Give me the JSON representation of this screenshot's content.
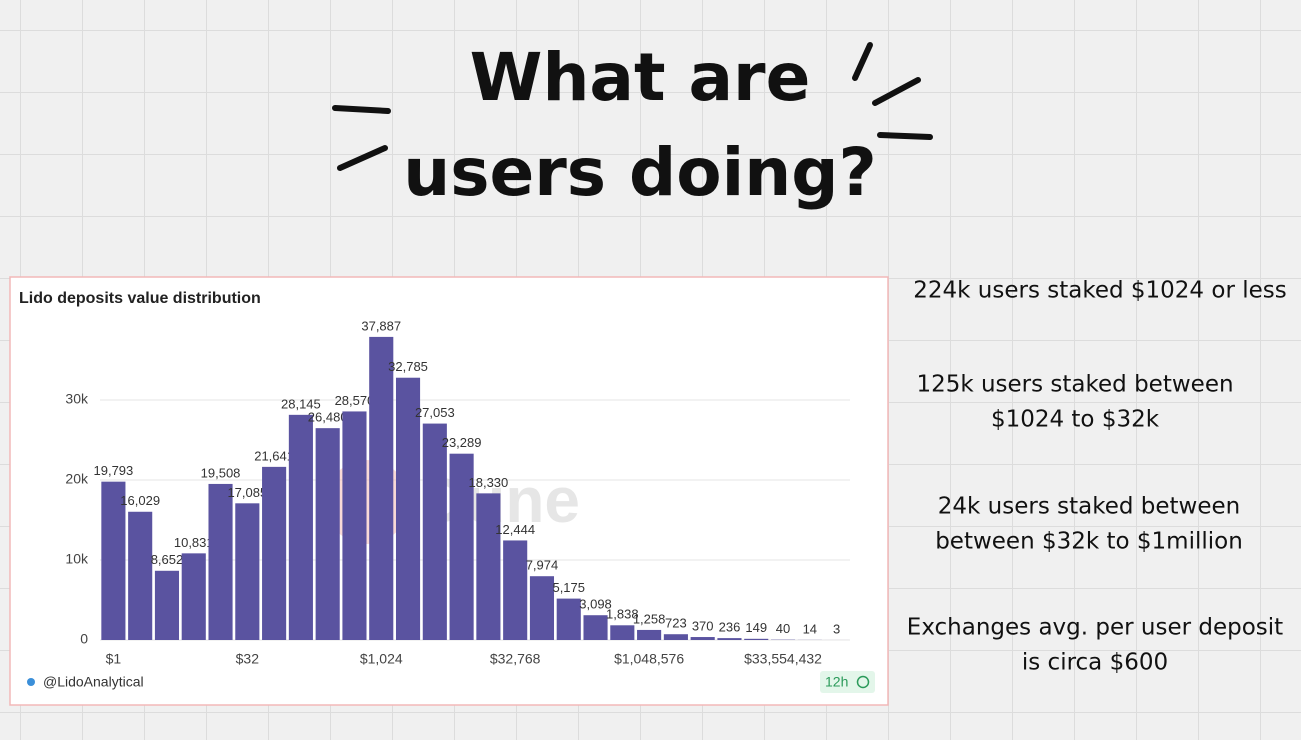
{
  "title": {
    "lines": [
      "What are",
      "users doing?"
    ]
  },
  "chart_data": {
    "type": "bar",
    "title": "Lido deposits value distribution",
    "categories": [
      "$1",
      null,
      null,
      null,
      null,
      "$32",
      null,
      null,
      null,
      null,
      "$1,024",
      null,
      null,
      null,
      null,
      "$32,768",
      null,
      null,
      null,
      null,
      "$1,048,576",
      null,
      null,
      null,
      null,
      "$33,554,432",
      null,
      null
    ],
    "values": [
      19793,
      16029,
      8652,
      10831,
      19508,
      17085,
      21641,
      28145,
      26480,
      28570,
      37887,
      32785,
      27053,
      23289,
      18330,
      12444,
      7974,
      5175,
      3098,
      1838,
      1258,
      723,
      370,
      236,
      149,
      40,
      14,
      3
    ],
    "value_labels": [
      "19,793",
      "16,029",
      "8,652",
      "10,831",
      "19,508",
      "17,085",
      "21,641",
      "28,145",
      "26,480",
      "28,570",
      "37,887",
      "32,785",
      "27,053",
      "23,289",
      "18,330",
      "12,444",
      "7,974",
      "5,175",
      "3,098",
      "1,838",
      "1,258",
      "723",
      "370",
      "236",
      "149",
      "40",
      "14",
      "3"
    ],
    "color": "#5a53a0",
    "ylim": [
      0,
      40000
    ],
    "yticks": [
      0,
      {
        "value": 10000,
        "label": "10k"
      },
      {
        "value": 20000,
        "label": "20k"
      },
      {
        "value": 30000,
        "label": "30k"
      }
    ],
    "grid": true,
    "watermark": "Dune",
    "source": "@LidoAnalytical",
    "freshness": "12h"
  },
  "notes": [
    {
      "lines": [
        "224k users staked $1024 or less"
      ]
    },
    {
      "lines": [
        "125k users staked between",
        "$1024 to $32k"
      ]
    },
    {
      "lines": [
        "24k users staked between",
        "between $32k to $1million"
      ]
    },
    {
      "lines": [
        "Exchanges avg. per user deposit",
        "is circa $600"
      ]
    }
  ]
}
